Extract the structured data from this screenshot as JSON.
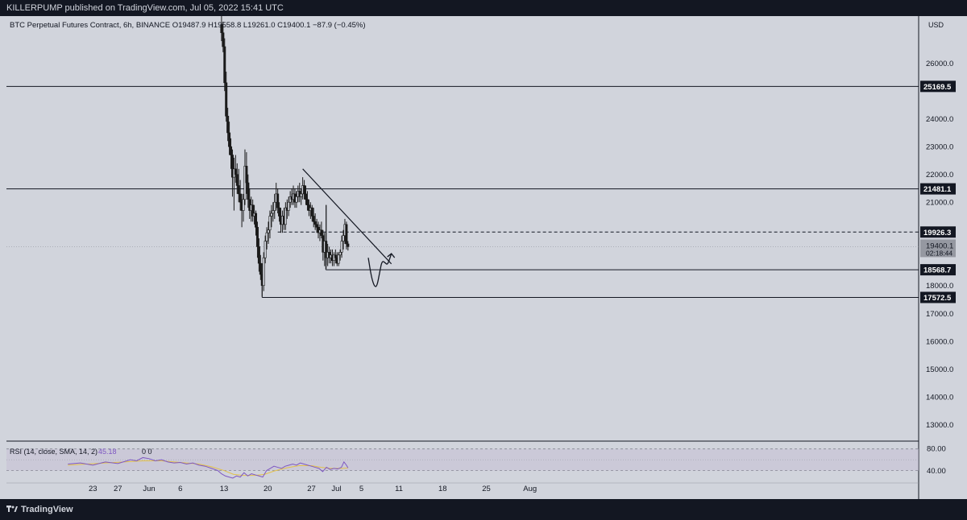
{
  "header": {
    "published": "KILLERPUMP published on TradingView.com, Jul 05, 2022 15:41 UTC"
  },
  "legend": {
    "symbol": "BTC Perpetual Futures Contract, 6h, BINANCE",
    "open": "O19487.9",
    "high": "H19558.8",
    "low": "L19261.0",
    "close": "C19400.1",
    "change": "−87.9 (−0.45%)"
  },
  "rsi_legend": {
    "label": "RSI (14, close, SMA, 14, 2)",
    "value": "45.18",
    "extra": "0  0"
  },
  "footer": {
    "brand": "TradingView"
  },
  "colors": {
    "background": "#d1d4dc",
    "frame": "#131722",
    "candle": "#1a1a1a",
    "rsi_line": "#7e57c2",
    "rsi_ma": "#e3c14a",
    "rsi_band": "#c6bfd6"
  },
  "chart_data": {
    "type": "candlestick",
    "currency": "USD",
    "ylim": [
      12400,
      27700
    ],
    "y_ticks": [
      13000,
      14000,
      15000,
      16000,
      17000,
      18000,
      19000,
      20000,
      21000,
      22000,
      23000,
      24000,
      25000,
      26000
    ],
    "x_ticks": [
      {
        "label": "23",
        "day": -9
      },
      {
        "label": "27",
        "day": -5
      },
      {
        "label": "Jun",
        "day": 0
      },
      {
        "label": "6",
        "day": 5
      },
      {
        "label": "13",
        "day": 12
      },
      {
        "label": "20",
        "day": 19
      },
      {
        "label": "27",
        "day": 26
      },
      {
        "label": "Jul",
        "day": 30
      },
      {
        "label": "5",
        "day": 34
      },
      {
        "label": "11",
        "day": 40
      },
      {
        "label": "18",
        "day": 47
      },
      {
        "label": "25",
        "day": 54
      },
      {
        "label": "Aug",
        "day": 61
      }
    ],
    "price_levels": [
      {
        "value": 25169.5,
        "label": "25169.5",
        "style": "solid"
      },
      {
        "value": 21481.1,
        "label": "21481.1",
        "style": "solid"
      },
      {
        "value": 19926.3,
        "label": "19926.3",
        "style": "dashed"
      },
      {
        "value": 18568.7,
        "label": "18568.7",
        "style": "solid"
      },
      {
        "value": 17572.5,
        "label": "17572.5",
        "style": "solid"
      }
    ],
    "current_price": {
      "value": 19400.1,
      "label": "19400.1",
      "countdown": "02:18:44"
    },
    "trendline": {
      "start": [
        24.6,
        22200
      ],
      "end": [
        38.8,
        18780
      ]
    },
    "projection": [
      [
        35.1,
        19000
      ],
      [
        35.6,
        18300
      ],
      [
        36.1,
        17950
      ],
      [
        36.5,
        17980
      ],
      [
        36.9,
        18450
      ],
      [
        37.3,
        18900
      ],
      [
        37.8,
        18820
      ],
      [
        38.2,
        18740
      ],
      [
        38.8,
        19150
      ]
    ],
    "candles": [
      {
        "t": 11.6,
        "o": 27400,
        "h": 27700,
        "l": 26800,
        "c": 27100
      },
      {
        "t": 11.85,
        "o": 27100,
        "h": 27500,
        "l": 26400,
        "c": 26600
      },
      {
        "t": 12.1,
        "o": 26600,
        "h": 26900,
        "l": 25000,
        "c": 25300
      },
      {
        "t": 12.35,
        "o": 25300,
        "h": 25700,
        "l": 23900,
        "c": 24100
      },
      {
        "t": 12.6,
        "o": 24100,
        "h": 24400,
        "l": 23200,
        "c": 23500
      },
      {
        "t": 12.85,
        "o": 23500,
        "h": 23900,
        "l": 22700,
        "c": 23000
      },
      {
        "t": 13.1,
        "o": 23000,
        "h": 23300,
        "l": 22200,
        "c": 22700
      },
      {
        "t": 13.35,
        "o": 22700,
        "h": 22900,
        "l": 21200,
        "c": 21900
      },
      {
        "t": 13.6,
        "o": 21900,
        "h": 22600,
        "l": 20700,
        "c": 22200
      },
      {
        "t": 13.85,
        "o": 22200,
        "h": 22700,
        "l": 21700,
        "c": 22000
      },
      {
        "t": 14.1,
        "o": 22000,
        "h": 22400,
        "l": 21300,
        "c": 21600
      },
      {
        "t": 14.35,
        "o": 21600,
        "h": 22200,
        "l": 21000,
        "c": 21300
      },
      {
        "t": 14.6,
        "o": 21300,
        "h": 21800,
        "l": 20700,
        "c": 21000
      },
      {
        "t": 14.85,
        "o": 21000,
        "h": 21300,
        "l": 20100,
        "c": 20700
      },
      {
        "t": 15.1,
        "o": 20700,
        "h": 21300,
        "l": 20300,
        "c": 21100
      },
      {
        "t": 15.35,
        "o": 21100,
        "h": 22900,
        "l": 20900,
        "c": 22300
      },
      {
        "t": 15.6,
        "o": 22300,
        "h": 22800,
        "l": 21300,
        "c": 21700
      },
      {
        "t": 15.85,
        "o": 21700,
        "h": 22000,
        "l": 20800,
        "c": 21100
      },
      {
        "t": 16.1,
        "o": 21100,
        "h": 21500,
        "l": 20400,
        "c": 20700
      },
      {
        "t": 16.35,
        "o": 20700,
        "h": 21200,
        "l": 20300,
        "c": 20900
      },
      {
        "t": 16.6,
        "o": 20900,
        "h": 21100,
        "l": 20300,
        "c": 20500
      },
      {
        "t": 16.85,
        "o": 20500,
        "h": 20900,
        "l": 20200,
        "c": 20600
      },
      {
        "t": 17.1,
        "o": 20600,
        "h": 20700,
        "l": 19800,
        "c": 20100
      },
      {
        "t": 17.35,
        "o": 20100,
        "h": 20300,
        "l": 19000,
        "c": 19400
      },
      {
        "t": 17.6,
        "o": 19400,
        "h": 19700,
        "l": 18500,
        "c": 18800
      },
      {
        "t": 17.85,
        "o": 18800,
        "h": 19100,
        "l": 18200,
        "c": 18400
      },
      {
        "t": 18.1,
        "o": 18400,
        "h": 18800,
        "l": 17600,
        "c": 18000
      },
      {
        "t": 18.35,
        "o": 18000,
        "h": 19200,
        "l": 17800,
        "c": 19000
      },
      {
        "t": 18.6,
        "o": 19000,
        "h": 19800,
        "l": 18800,
        "c": 19600
      },
      {
        "t": 18.85,
        "o": 19600,
        "h": 20100,
        "l": 19300,
        "c": 19900
      },
      {
        "t": 19.1,
        "o": 19900,
        "h": 20300,
        "l": 19500,
        "c": 20000
      },
      {
        "t": 19.35,
        "o": 20000,
        "h": 20700,
        "l": 19700,
        "c": 20500
      },
      {
        "t": 19.6,
        "o": 20500,
        "h": 20900,
        "l": 20100,
        "c": 20600
      },
      {
        "t": 19.85,
        "o": 20600,
        "h": 21000,
        "l": 20300,
        "c": 20700
      },
      {
        "t": 20.1,
        "o": 20700,
        "h": 21300,
        "l": 20400,
        "c": 21000
      },
      {
        "t": 20.35,
        "o": 21000,
        "h": 21700,
        "l": 20700,
        "c": 21300
      },
      {
        "t": 20.6,
        "o": 21300,
        "h": 21500,
        "l": 20600,
        "c": 20800
      },
      {
        "t": 20.85,
        "o": 20800,
        "h": 21000,
        "l": 20300,
        "c": 20500
      },
      {
        "t": 21.1,
        "o": 20500,
        "h": 20800,
        "l": 19900,
        "c": 20200
      },
      {
        "t": 21.35,
        "o": 20200,
        "h": 20700,
        "l": 19900,
        "c": 20500
      },
      {
        "t": 21.6,
        "o": 20500,
        "h": 20800,
        "l": 20000,
        "c": 20200
      },
      {
        "t": 21.85,
        "o": 20200,
        "h": 21000,
        "l": 20000,
        "c": 20800
      },
      {
        "t": 22.1,
        "o": 20800,
        "h": 21100,
        "l": 20400,
        "c": 20700
      },
      {
        "t": 22.35,
        "o": 20700,
        "h": 21200,
        "l": 20500,
        "c": 21000
      },
      {
        "t": 22.6,
        "o": 21000,
        "h": 21400,
        "l": 20800,
        "c": 21200
      },
      {
        "t": 22.85,
        "o": 21200,
        "h": 21500,
        "l": 20900,
        "c": 21100
      },
      {
        "t": 23.1,
        "o": 21100,
        "h": 21600,
        "l": 20900,
        "c": 21300
      },
      {
        "t": 23.35,
        "o": 21300,
        "h": 21500,
        "l": 20800,
        "c": 21000
      },
      {
        "t": 23.6,
        "o": 21000,
        "h": 21400,
        "l": 20800,
        "c": 21200
      },
      {
        "t": 23.85,
        "o": 21200,
        "h": 21600,
        "l": 21000,
        "c": 21400
      },
      {
        "t": 24.1,
        "o": 21400,
        "h": 21700,
        "l": 21000,
        "c": 21200
      },
      {
        "t": 24.35,
        "o": 21200,
        "h": 21500,
        "l": 20900,
        "c": 21300
      },
      {
        "t": 24.6,
        "o": 21300,
        "h": 21900,
        "l": 21100,
        "c": 21600
      },
      {
        "t": 24.85,
        "o": 21600,
        "h": 21800,
        "l": 21100,
        "c": 21300
      },
      {
        "t": 25.1,
        "o": 21300,
        "h": 21600,
        "l": 20900,
        "c": 21100
      },
      {
        "t": 25.35,
        "o": 21100,
        "h": 21400,
        "l": 20700,
        "c": 20900
      },
      {
        "t": 25.6,
        "o": 20900,
        "h": 21100,
        "l": 20500,
        "c": 20700
      },
      {
        "t": 25.85,
        "o": 20700,
        "h": 21000,
        "l": 20400,
        "c": 20800
      },
      {
        "t": 26.1,
        "o": 20800,
        "h": 20900,
        "l": 20300,
        "c": 20500
      },
      {
        "t": 26.35,
        "o": 20500,
        "h": 20800,
        "l": 20100,
        "c": 20300
      },
      {
        "t": 26.6,
        "o": 20300,
        "h": 20600,
        "l": 20000,
        "c": 20200
      },
      {
        "t": 26.85,
        "o": 20200,
        "h": 20400,
        "l": 19900,
        "c": 20100
      },
      {
        "t": 27.1,
        "o": 20100,
        "h": 20300,
        "l": 19700,
        "c": 19900
      },
      {
        "t": 27.35,
        "o": 19900,
        "h": 20200,
        "l": 19600,
        "c": 20000
      },
      {
        "t": 27.6,
        "o": 20000,
        "h": 20300,
        "l": 19700,
        "c": 19800
      },
      {
        "t": 27.85,
        "o": 19800,
        "h": 20000,
        "l": 18900,
        "c": 19200
      },
      {
        "t": 28.1,
        "o": 19200,
        "h": 19900,
        "l": 18700,
        "c": 19600
      },
      {
        "t": 28.35,
        "o": 19600,
        "h": 20900,
        "l": 18600,
        "c": 19000
      },
      {
        "t": 28.6,
        "o": 19000,
        "h": 19500,
        "l": 18700,
        "c": 19200
      },
      {
        "t": 28.85,
        "o": 19200,
        "h": 19400,
        "l": 18800,
        "c": 19000
      },
      {
        "t": 29.1,
        "o": 19000,
        "h": 19300,
        "l": 18800,
        "c": 19100
      },
      {
        "t": 29.35,
        "o": 19100,
        "h": 19300,
        "l": 18700,
        "c": 18900
      },
      {
        "t": 29.6,
        "o": 18900,
        "h": 19200,
        "l": 18700,
        "c": 19100
      },
      {
        "t": 29.85,
        "o": 19100,
        "h": 19300,
        "l": 18800,
        "c": 19000
      },
      {
        "t": 30.1,
        "o": 19000,
        "h": 19200,
        "l": 18700,
        "c": 18800
      },
      {
        "t": 30.35,
        "o": 18800,
        "h": 19200,
        "l": 18700,
        "c": 19100
      },
      {
        "t": 30.6,
        "o": 19100,
        "h": 19300,
        "l": 18900,
        "c": 19200
      },
      {
        "t": 30.85,
        "o": 19200,
        "h": 19800,
        "l": 19000,
        "c": 19600
      },
      {
        "t": 31.1,
        "o": 19600,
        "h": 20000,
        "l": 19300,
        "c": 19800
      },
      {
        "t": 31.35,
        "o": 19800,
        "h": 20400,
        "l": 19500,
        "c": 20200
      },
      {
        "t": 31.6,
        "o": 20200,
        "h": 20300,
        "l": 19300,
        "c": 19500
      },
      {
        "t": 31.85,
        "o": 19500,
        "h": 19600,
        "l": 19260,
        "c": 19400
      }
    ],
    "rsi": {
      "ylim": [
        20,
        90
      ],
      "levels": [
        {
          "value": 80,
          "label": "80.00"
        },
        {
          "value": 40,
          "label": "40.00"
        }
      ],
      "line": [
        [
          -13,
          52
        ],
        [
          -11,
          54
        ],
        [
          -9,
          50
        ],
        [
          -7,
          56
        ],
        [
          -5,
          53
        ],
        [
          -3,
          60
        ],
        [
          -2,
          58
        ],
        [
          -1,
          64
        ],
        [
          0,
          62
        ],
        [
          1,
          58
        ],
        [
          2,
          60
        ],
        [
          3,
          56
        ],
        [
          4,
          54
        ],
        [
          5,
          55
        ],
        [
          6,
          52
        ],
        [
          7,
          54
        ],
        [
          8,
          50
        ],
        [
          9,
          48
        ],
        [
          10,
          44
        ],
        [
          11,
          40
        ],
        [
          11.6,
          34
        ],
        [
          12.2,
          30
        ],
        [
          12.8,
          28
        ],
        [
          13.4,
          26
        ],
        [
          14,
          30
        ],
        [
          14.6,
          28
        ],
        [
          15.2,
          36
        ],
        [
          15.8,
          30
        ],
        [
          16.4,
          34
        ],
        [
          17,
          32
        ],
        [
          17.6,
          30
        ],
        [
          18.2,
          28
        ],
        [
          18.8,
          40
        ],
        [
          19.4,
          44
        ],
        [
          20,
          48
        ],
        [
          20.6,
          46
        ],
        [
          21.2,
          44
        ],
        [
          21.8,
          48
        ],
        [
          22.4,
          50
        ],
        [
          23,
          52
        ],
        [
          23.6,
          50
        ],
        [
          24.2,
          54
        ],
        [
          24.8,
          52
        ],
        [
          25.4,
          50
        ],
        [
          26,
          48
        ],
        [
          26.6,
          46
        ],
        [
          27.2,
          44
        ],
        [
          27.8,
          38
        ],
        [
          28.4,
          46
        ],
        [
          29,
          42
        ],
        [
          29.6,
          44
        ],
        [
          30.2,
          43
        ],
        [
          30.8,
          46
        ],
        [
          31.2,
          56
        ],
        [
          31.6,
          50
        ],
        [
          31.85,
          45
        ]
      ],
      "ma": [
        [
          -13,
          50
        ],
        [
          -10,
          52
        ],
        [
          -7,
          54
        ],
        [
          -4,
          56
        ],
        [
          -1,
          58
        ],
        [
          2,
          58
        ],
        [
          5,
          55
        ],
        [
          8,
          52
        ],
        [
          10,
          47
        ],
        [
          12,
          40
        ],
        [
          13.5,
          33
        ],
        [
          15,
          31
        ],
        [
          17,
          31
        ],
        [
          18.5,
          33
        ],
        [
          20,
          39
        ],
        [
          22,
          45
        ],
        [
          24,
          49
        ],
        [
          26,
          49
        ],
        [
          27.5,
          46
        ],
        [
          29,
          44
        ],
        [
          31,
          44
        ],
        [
          31.85,
          45
        ]
      ]
    }
  }
}
